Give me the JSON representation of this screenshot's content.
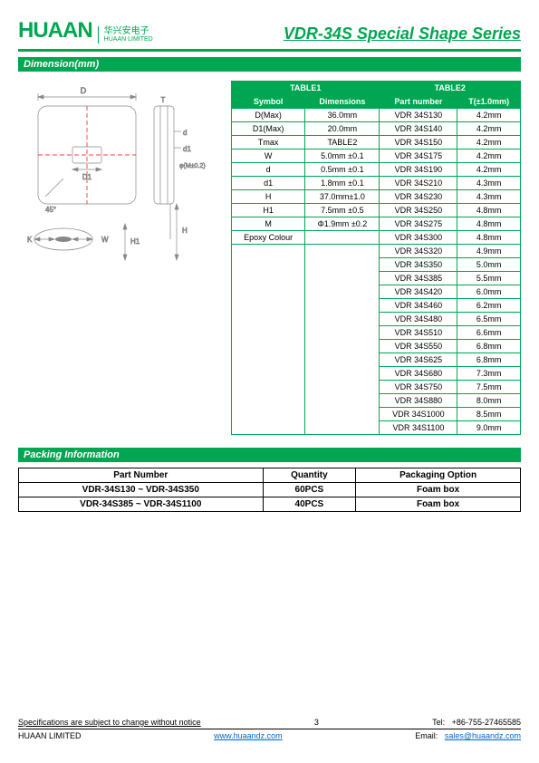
{
  "header": {
    "logo_main": "HUAAN",
    "logo_cn": "华兴安电子",
    "logo_en": "HUAAN LIMITED",
    "title": "VDR-34S Special Shape Series"
  },
  "sections": {
    "dimension": "Dimension(mm)",
    "packing": "Packing Information"
  },
  "table1": {
    "header": "TABLE1",
    "col1": "Symbol",
    "col2": "Dimensions",
    "rows": [
      {
        "sym": "D(Max)",
        "dim": "36.0mm"
      },
      {
        "sym": "D1(Max)",
        "dim": "20.0mm"
      },
      {
        "sym": "Tmax",
        "dim": "TABLE2"
      },
      {
        "sym": "W",
        "dim": "5.0mm  ±0.1"
      },
      {
        "sym": "d",
        "dim": "0.5mm ±0.1"
      },
      {
        "sym": "d1",
        "dim": "1.8mm ±0.1"
      },
      {
        "sym": "H",
        "dim": "37.0mm±1.0"
      },
      {
        "sym": "H1",
        "dim": "7.5mm ±0.5"
      },
      {
        "sym": "M",
        "dim": "Φ1.9mm ±0.2"
      },
      {
        "sym": "Epoxy  Colour",
        "dim": ""
      }
    ]
  },
  "table2": {
    "header": "TABLE2",
    "col1": "Part number",
    "col2": "T(±1.0mm)",
    "rows": [
      {
        "pn": "VDR 34S130",
        "t": "4.2mm"
      },
      {
        "pn": "VDR 34S140",
        "t": "4.2mm"
      },
      {
        "pn": "VDR 34S150",
        "t": "4.2mm"
      },
      {
        "pn": "VDR 34S175",
        "t": "4.2mm"
      },
      {
        "pn": "VDR 34S190",
        "t": "4.2mm"
      },
      {
        "pn": "VDR 34S210",
        "t": "4.3mm"
      },
      {
        "pn": "VDR 34S230",
        "t": "4.3mm"
      },
      {
        "pn": "VDR 34S250",
        "t": "4.8mm"
      },
      {
        "pn": "VDR 34S275",
        "t": "4.8mm"
      },
      {
        "pn": "VDR 34S300",
        "t": "4.8mm"
      },
      {
        "pn": "VDR 34S320",
        "t": "4.9mm"
      },
      {
        "pn": "VDR 34S350",
        "t": "5.0mm"
      },
      {
        "pn": "VDR 34S385",
        "t": "5.5mm"
      },
      {
        "pn": "VDR 34S420",
        "t": "6.0mm"
      },
      {
        "pn": "VDR 34S460",
        "t": "6.2mm"
      },
      {
        "pn": "VDR 34S480",
        "t": "6.5mm"
      },
      {
        "pn": "VDR 34S510",
        "t": "6.6mm"
      },
      {
        "pn": "VDR 34S550",
        "t": "6.8mm"
      },
      {
        "pn": "VDR 34S625",
        "t": "6.8mm"
      },
      {
        "pn": "VDR 34S680",
        "t": "7.3mm"
      },
      {
        "pn": "VDR 34S750",
        "t": "7.5mm"
      },
      {
        "pn": "VDR 34S880",
        "t": "8.0mm"
      },
      {
        "pn": "VDR 34S1000",
        "t": "8.5mm"
      },
      {
        "pn": "VDR 34S1100",
        "t": "9.0mm"
      }
    ]
  },
  "packing": {
    "col1": "Part Number",
    "col2": "Quantity",
    "col3": "Packaging Option",
    "rows": [
      {
        "pn": "VDR-34S130 ~ VDR-34S350",
        "qty": "60PCS",
        "pkg": "Foam box"
      },
      {
        "pn": "VDR-34S385 ~ VDR-34S1100",
        "qty": "40PCS",
        "pkg": "Foam box"
      }
    ]
  },
  "diagram_labels": {
    "D": "D",
    "D1": "D1",
    "d": "d",
    "d1": "d1",
    "K": "K",
    "W": "W",
    "H": "H",
    "H1": "H1",
    "T": "T",
    "ang": "45°",
    "m": "φ(M±0.2)"
  },
  "footer": {
    "notice": "Specifications are subject to change without notice",
    "page": "3",
    "tel_label": "Tel:",
    "tel": "+86-755-27465585",
    "company": "HUAAN LIMITED",
    "url": "www.huaandz.com",
    "email_label": "Email:",
    "email": "sales@huaandz.com"
  }
}
